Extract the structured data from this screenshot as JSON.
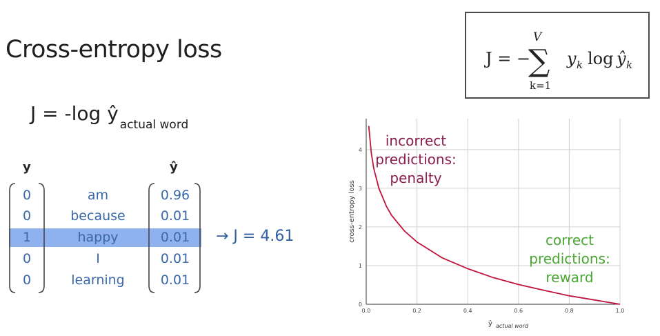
{
  "slide": {
    "title": "Cross-entropy loss",
    "loss_main": "J = -log ŷ",
    "loss_sub": "actual word",
    "formula_parts": {
      "lhs": "J = −",
      "sum_symbol": "∑",
      "upper": "V",
      "lower": "k=1",
      "body": "y",
      "body_sub": "k",
      "log": "log",
      "yhat": "ŷ",
      "yhat_sub": "k"
    }
  },
  "vector_table": {
    "y_header": "y",
    "yhat_header": "ŷ",
    "rows": [
      {
        "y": "0",
        "word": "am",
        "yhat": "0.96"
      },
      {
        "y": "0",
        "word": "because",
        "yhat": "0.01"
      },
      {
        "y": "1",
        "word": "happy",
        "yhat": "0.01"
      },
      {
        "y": "0",
        "word": "I",
        "yhat": "0.01"
      },
      {
        "y": "0",
        "word": "learning",
        "yhat": "0.01"
      }
    ],
    "highlight_color": "#8fb1ed",
    "result": "→ J = 4.61"
  },
  "chart_data": {
    "type": "line",
    "xlabel_main": "ŷ",
    "xlabel_sub": "actual word",
    "ylabel": "cross-entropy loss",
    "xlim": [
      0,
      1.0
    ],
    "ylim": [
      0,
      4.8
    ],
    "x_ticks": [
      "0.0",
      "0.2",
      "0.4",
      "0.6",
      "0.8",
      "1.0"
    ],
    "y_ticks": [
      "0",
      "1",
      "2",
      "3",
      "4"
    ],
    "grid": true,
    "series": [
      {
        "color": "#c0143c",
        "x": [
          0.01,
          0.02,
          0.03,
          0.05,
          0.08,
          0.1,
          0.15,
          0.2,
          0.3,
          0.4,
          0.5,
          0.6,
          0.7,
          0.8,
          0.9,
          1.0
        ],
        "y": [
          4.61,
          3.91,
          3.51,
          3.0,
          2.53,
          2.3,
          1.9,
          1.61,
          1.2,
          0.92,
          0.69,
          0.51,
          0.36,
          0.22,
          0.11,
          0.0
        ]
      }
    ],
    "annotations": [
      {
        "lines": [
          "incorrect",
          "predictions:",
          "penalty"
        ],
        "color": "#8a1f4f"
      },
      {
        "lines": [
          "correct",
          "predictions:",
          "reward"
        ],
        "color": "#4aa632"
      }
    ]
  }
}
